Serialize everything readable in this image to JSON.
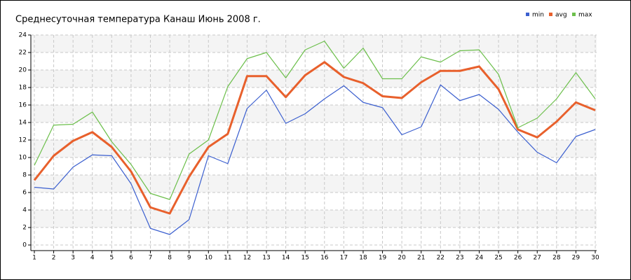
{
  "chart_data": {
    "type": "line",
    "title": "Среднесуточная температура Канаш  Июнь 2008 г.",
    "x": [
      1,
      2,
      3,
      4,
      5,
      6,
      7,
      8,
      9,
      10,
      11,
      12,
      13,
      14,
      15,
      16,
      17,
      18,
      19,
      20,
      21,
      22,
      23,
      24,
      25,
      26,
      27,
      28,
      29,
      30
    ],
    "series": [
      {
        "name": "min",
        "color": "#3b5fcf",
        "values": [
          6.6,
          6.4,
          8.9,
          10.3,
          10.2,
          7.0,
          1.9,
          1.2,
          2.9,
          10.2,
          9.3,
          15.6,
          17.7,
          13.9,
          15.0,
          16.7,
          18.2,
          16.3,
          15.7,
          12.6,
          13.5,
          18.3,
          16.5,
          17.2,
          15.5,
          12.9,
          10.6,
          9.4,
          12.4,
          13.2
        ]
      },
      {
        "name": "avg",
        "color": "#e8602c",
        "values": [
          7.4,
          10.2,
          11.9,
          12.9,
          11.2,
          8.4,
          4.3,
          3.6,
          7.8,
          11.2,
          12.7,
          19.3,
          19.3,
          16.9,
          19.4,
          20.9,
          19.2,
          18.5,
          17.0,
          16.8,
          18.6,
          19.9,
          19.9,
          20.4,
          17.8,
          13.2,
          12.3,
          14.1,
          16.3,
          15.4
        ]
      },
      {
        "name": "max",
        "color": "#6cbf4b",
        "values": [
          9.1,
          13.7,
          13.8,
          15.2,
          11.8,
          9.2,
          5.9,
          5.2,
          10.4,
          12.0,
          18.1,
          21.3,
          22.0,
          19.1,
          22.3,
          23.3,
          20.2,
          22.5,
          19.0,
          19.0,
          21.5,
          20.9,
          22.2,
          22.3,
          19.5,
          13.4,
          14.5,
          16.7,
          19.7,
          16.7
        ]
      }
    ],
    "xlim": [
      1,
      30
    ],
    "xticks": [
      1,
      2,
      3,
      4,
      5,
      6,
      7,
      8,
      9,
      10,
      11,
      12,
      13,
      14,
      15,
      16,
      17,
      18,
      19,
      20,
      21,
      22,
      23,
      24,
      25,
      26,
      27,
      28,
      29,
      30
    ],
    "ylim": [
      0,
      24
    ],
    "yticks": [
      0,
      2,
      4,
      6,
      8,
      10,
      12,
      14,
      16,
      18,
      20,
      22,
      24
    ],
    "grid": true,
    "legend": "top-right"
  }
}
